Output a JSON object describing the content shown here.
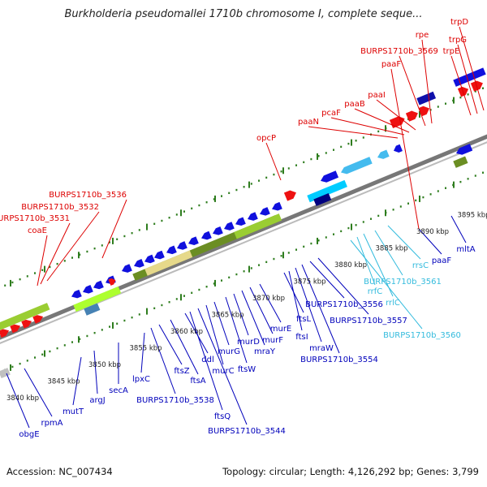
{
  "title": "Burkholderia pseudomallei 1710b chromosome I, complete seque...",
  "footer": {
    "accession": "Accession: NC_007434",
    "summary": "Topology: circular; Length: 4,126,292 bp; Genes: 3,799"
  },
  "colors": {
    "label_red": "#dd0000",
    "label_blue": "#0000bb",
    "label_cyan": "#33bbdd",
    "tick_green": "#2e7d1e",
    "gene_blue": "#1010dd",
    "gene_red": "#ee1111"
  },
  "kbp_labels": [
    "3840 kbp",
    "3845 kbp",
    "3850 kbp",
    "3855 kbp",
    "3860 kbp",
    "3865 kbp",
    "3870 kbp",
    "3875 kbp",
    "3880 kbp",
    "3885 kbp",
    "3890 kbp",
    "3895 kbp"
  ],
  "red_labels": [
    "coaE",
    "BURPS1710b_3531",
    "BURPS1710b_3532",
    "BURPS1710b_3536",
    "opcP",
    "paaN",
    "pcaF",
    "paaB",
    "paaI",
    "paaF",
    "BURPS1710b_3569",
    "rpe",
    "trpE",
    "trpG",
    "trpD"
  ],
  "blue_labels": [
    "obgE",
    "rpmA",
    "mutT",
    "argJ",
    "secA",
    "lpxC",
    "BURPS1710b_3538",
    "ftsZ",
    "ftsA",
    "ddl",
    "ftsQ",
    "BURPS1710b_3544",
    "murC",
    "murG",
    "ftsW",
    "murD",
    "mraY",
    "murF",
    "murE",
    "ftsL",
    "ftsI",
    "mraW",
    "BURPS1710b_3554",
    "BURPS1710b_3556",
    "BURPS1710b_3557",
    "paaF",
    "mltA"
  ],
  "cyan_labels": [
    "rrsC",
    "BURPS1710b_3561",
    "rrfC",
    "rrlC",
    "BURPS1710b_3560"
  ]
}
